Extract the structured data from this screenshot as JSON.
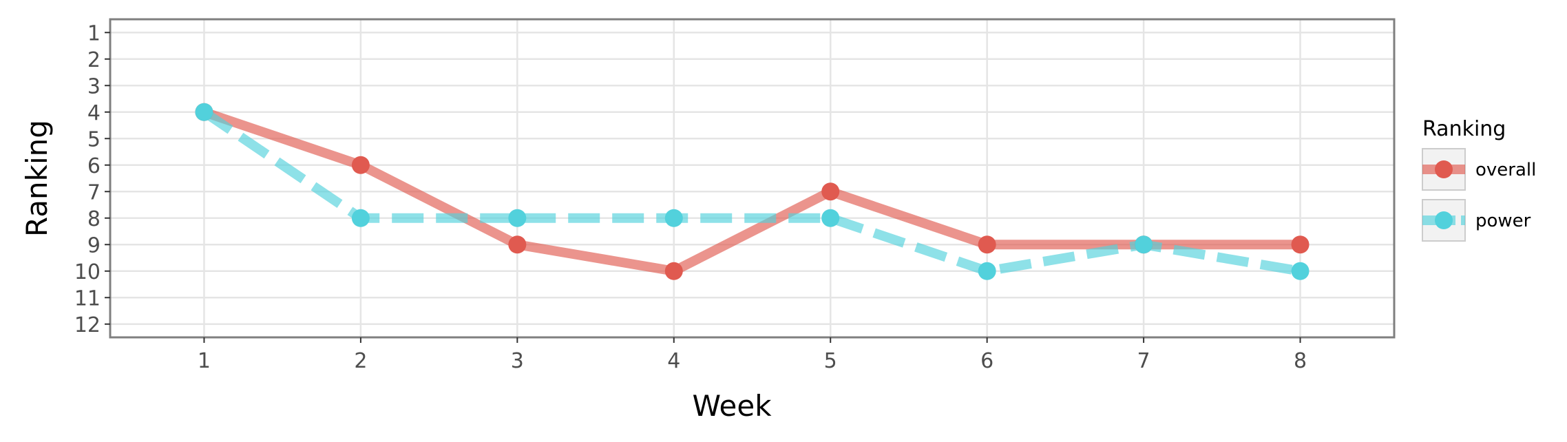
{
  "chart_data": {
    "type": "line",
    "xlabel": "Week",
    "ylabel": "Ranking",
    "x": [
      1,
      2,
      3,
      4,
      5,
      6,
      7,
      8
    ],
    "x_ticks": [
      "1",
      "2",
      "3",
      "4",
      "5",
      "6",
      "7",
      "8"
    ],
    "y_ticks": [
      "1",
      "2",
      "3",
      "4",
      "5",
      "6",
      "7",
      "8",
      "9",
      "10",
      "11",
      "12"
    ],
    "xlim": [
      0.4,
      8.6
    ],
    "ylim": [
      12.5,
      0.5
    ],
    "y_reversed": true,
    "grid": true,
    "legend": {
      "title": "Ranking",
      "placement": "right"
    },
    "series": [
      {
        "name": "overall",
        "values": [
          4,
          6,
          9,
          10,
          7,
          9,
          9,
          9
        ],
        "color": "#e05a50",
        "line_style": "solid"
      },
      {
        "name": "power",
        "values": [
          4,
          8,
          8,
          8,
          8,
          10,
          9,
          10
        ],
        "color": "#52d1dc",
        "line_style": "dashed"
      }
    ]
  }
}
